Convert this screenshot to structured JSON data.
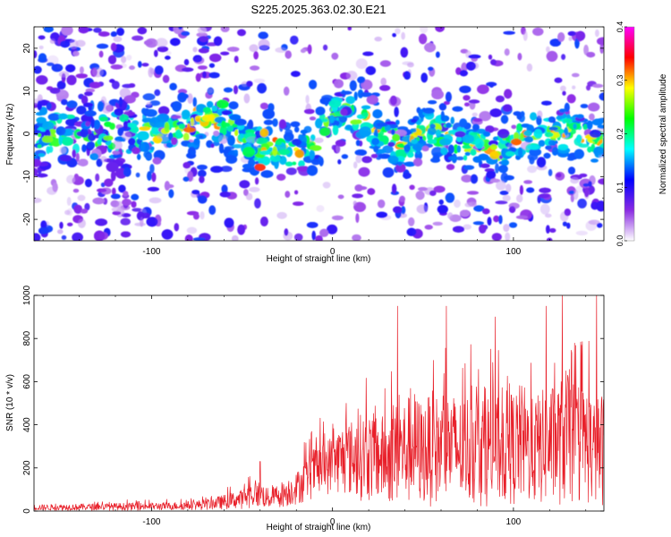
{
  "title": "S225.2025.363.02.30.E21",
  "chart_data": [
    {
      "type": "heatmap",
      "xlabel": "Height of straight line (km)",
      "ylabel": "Frequency (Hz)",
      "xlim": [
        -165,
        150
      ],
      "ylim": [
        -25,
        25
      ],
      "xticks": [
        -100,
        0,
        100
      ],
      "yticks": [
        -20,
        -10,
        0,
        10,
        20
      ],
      "colorbar": {
        "label": "Normalized spectral amplitude",
        "range": [
          0.0,
          0.4
        ],
        "ticks": [
          "0.0",
          "0.1",
          "0.2",
          "0.3",
          "0.4"
        ],
        "colors": [
          "#ffffff",
          "#8a2be2",
          "#0000ff",
          "#00ffff",
          "#00ff00",
          "#ffff00",
          "#ff0000",
          "#ff00ff"
        ]
      },
      "ridge": {
        "x": [
          -110,
          -95,
          -80,
          -70,
          -60,
          -50,
          -40,
          -30,
          -20,
          -10,
          0,
          10,
          20,
          30,
          40,
          50,
          60,
          70,
          80,
          90,
          100,
          110,
          120,
          130,
          140,
          150
        ],
        "frequency": [
          0,
          0,
          1,
          4,
          2,
          -1,
          -3,
          -3,
          -5,
          -2,
          4,
          5,
          3,
          -1,
          -3,
          1,
          0,
          -2,
          -3,
          -4,
          -2,
          0,
          1,
          0,
          -1,
          -2
        ]
      },
      "grid": false
    },
    {
      "type": "line",
      "xlabel": "Height of straight line (km)",
      "ylabel": "SNR (10 * v/v)",
      "xlim": [
        -165,
        150
      ],
      "ylim": [
        0,
        1000
      ],
      "xticks": [
        -100,
        0,
        100
      ],
      "yticks": [
        0,
        200,
        400,
        600,
        800,
        1000
      ],
      "line_color": "#e8202a",
      "series": [
        {
          "x": [
            -165,
            -150,
            -130,
            -110,
            -90,
            -80,
            -70,
            -60,
            -50,
            -45,
            -40,
            -35,
            -30,
            -25,
            -20,
            -15,
            -10,
            -5,
            0,
            5,
            10,
            15,
            20,
            25,
            30,
            35,
            40,
            45,
            50,
            55,
            60,
            65,
            70,
            75,
            80,
            85,
            90,
            95,
            100,
            105,
            110,
            115,
            120,
            125,
            130,
            135,
            140,
            145,
            150
          ],
          "values": [
            30,
            32,
            35,
            38,
            40,
            45,
            55,
            75,
            100,
            130,
            140,
            100,
            130,
            150,
            180,
            240,
            300,
            320,
            360,
            400,
            420,
            450,
            460,
            450,
            440,
            500,
            520,
            560,
            500,
            560,
            520,
            560,
            520,
            550,
            560,
            560,
            520,
            560,
            560,
            600,
            520,
            560,
            580,
            600,
            680,
            560,
            600,
            520,
            560
          ],
          "min_values": [
            2,
            2,
            3,
            3,
            4,
            5,
            5,
            8,
            10,
            15,
            15,
            10,
            15,
            20,
            30,
            40,
            60,
            70,
            80,
            80,
            60,
            50,
            40,
            30,
            30,
            30,
            20,
            20,
            20,
            20,
            20,
            20,
            20,
            20,
            20,
            20,
            20,
            20,
            20,
            20,
            20,
            20,
            20,
            20,
            20,
            20,
            20,
            20,
            20
          ],
          "peaks": [
            {
              "x": -40,
              "y": 230
            },
            {
              "x": 36,
              "y": 950
            },
            {
              "x": 63,
              "y": 950
            },
            {
              "x": 90,
              "y": 900
            },
            {
              "x": 118,
              "y": 950
            },
            {
              "x": 127,
              "y": 1000
            },
            {
              "x": 146,
              "y": 1000
            }
          ]
        }
      ],
      "grid": false
    }
  ]
}
